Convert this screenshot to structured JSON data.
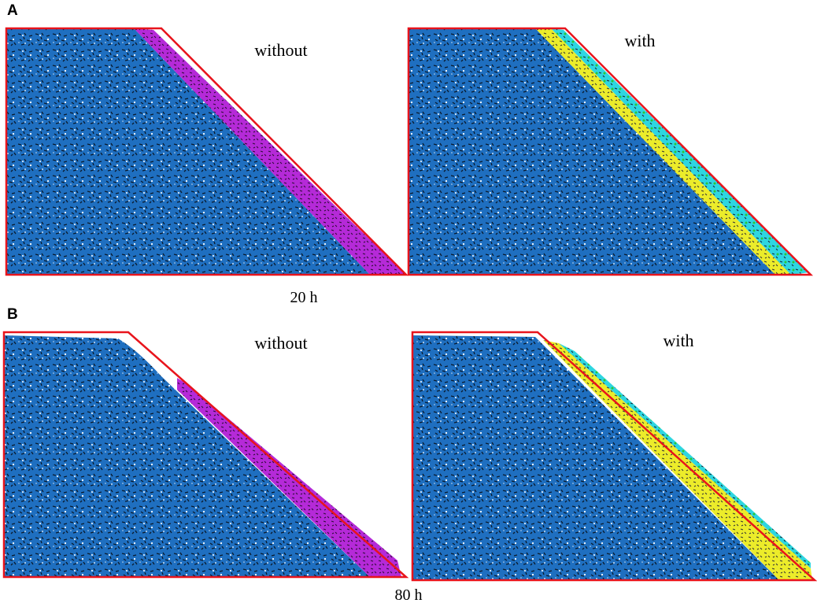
{
  "figure": {
    "rows": [
      {
        "label": "A",
        "caption": "20 h",
        "panels": [
          {
            "title": "without"
          },
          {
            "title": "with"
          }
        ]
      },
      {
        "label": "B",
        "caption": "80 h",
        "panels": [
          {
            "title": "without"
          },
          {
            "title": "with"
          }
        ]
      }
    ]
  }
}
